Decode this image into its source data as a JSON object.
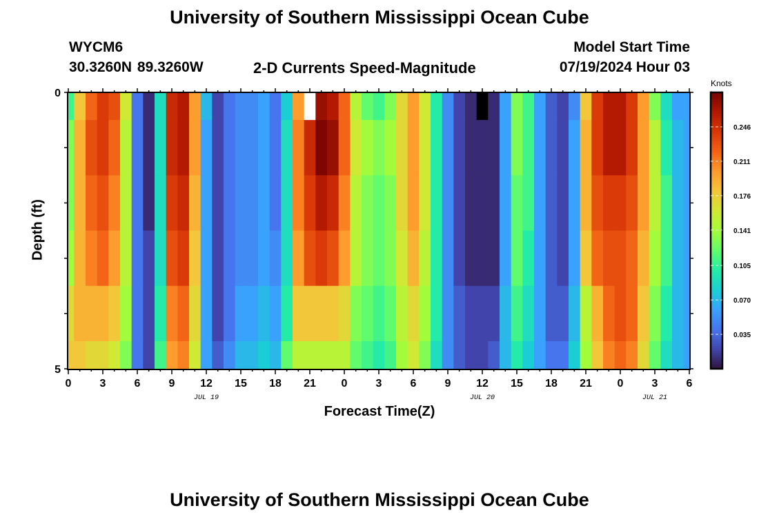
{
  "page": {
    "title": "University of Southern Mississippi Ocean Cube",
    "station_id": "WYCM6",
    "coordinates": "30.3260N  89.3260W",
    "subtitle": "2-D Currents Speed-Magnitude",
    "model_start_label": "Model Start Time",
    "model_start_value": "07/19/2024 Hour 03",
    "footer_title": "University of Southern Mississippi Ocean Cube"
  },
  "colors": {
    "colormap": [
      "#30123b",
      "#4145ab",
      "#4675ed",
      "#39a2fc",
      "#1bcfd4",
      "#24eca6",
      "#61fc6c",
      "#a4fc3b",
      "#d1e834",
      "#f3c63a",
      "#fe9b2d",
      "#f36315",
      "#d93806",
      "#b11901",
      "#7a0402"
    ],
    "missing_low": "#000000",
    "missing_high": "#ffffff"
  },
  "chart_data": {
    "type": "heatmap",
    "xlabel": "Forecast Time(Z)",
    "ylabel": "Depth (ft)",
    "x_tick_labels": [
      "0",
      "3",
      "6",
      "9",
      "12",
      "15",
      "18",
      "21",
      "0",
      "3",
      "6",
      "9",
      "12",
      "15",
      "18",
      "21",
      "0",
      "3",
      "6"
    ],
    "x_range_hours": [
      0,
      54
    ],
    "date_labels": [
      {
        "hour": 12,
        "label": "JUL 19"
      },
      {
        "hour": 36,
        "label": "JUL 20"
      },
      {
        "hour": 51,
        "label": "JUL 21"
      }
    ],
    "y_tick_labels": [
      "0",
      "5"
    ],
    "ylim": [
      0,
      5
    ],
    "colorbar": {
      "title": "Knots",
      "range": [
        0,
        0.281
      ],
      "tick_values": [
        0.035,
        0.07,
        0.105,
        0.141,
        0.176,
        0.211,
        0.246
      ],
      "tick_labels": [
        "0.035",
        "0.070",
        "0.105",
        "0.141",
        "0.176",
        "0.211",
        "0.246"
      ]
    },
    "depth_layer_edges_ft": [
      0,
      0.5,
      1.5,
      2.5,
      3.5,
      4.5,
      5
    ],
    "hours": [
      0,
      1,
      2,
      3,
      4,
      5,
      6,
      7,
      8,
      9,
      10,
      11,
      12,
      13,
      14,
      15,
      16,
      17,
      18,
      19,
      20,
      21,
      22,
      23,
      24,
      25,
      26,
      27,
      28,
      29,
      30,
      31,
      32,
      33,
      34,
      35,
      36,
      37,
      38,
      39,
      40,
      41,
      42,
      43,
      44,
      45,
      46,
      47,
      48,
      49,
      50,
      51,
      52,
      53,
      54
    ],
    "speed_knots": [
      [
        0.11,
        0.18,
        0.22,
        0.24,
        0.23,
        0.16,
        0.04,
        0.01,
        0.09,
        0.25,
        0.26,
        0.2,
        0.07,
        0.02,
        0.04,
        0.05,
        0.05,
        0.06,
        0.04,
        0.08,
        0.2,
        null,
        0.27,
        0.26,
        0.22,
        0.15,
        0.12,
        0.11,
        0.13,
        0.17,
        0.2,
        0.16,
        0.1,
        0.05,
        0.02,
        0.01,
        null,
        0.01,
        0.06,
        0.13,
        0.11,
        0.06,
        0.03,
        0.02,
        0.05,
        0.18,
        0.24,
        0.26,
        0.26,
        0.24,
        0.2,
        0.13,
        0.09,
        0.06,
        0.06
      ],
      [
        0.13,
        0.19,
        0.23,
        0.24,
        0.22,
        0.15,
        0.04,
        0.01,
        0.09,
        0.25,
        0.26,
        0.2,
        0.06,
        0.02,
        0.04,
        0.05,
        0.05,
        0.06,
        0.04,
        0.09,
        0.21,
        0.25,
        0.28,
        0.27,
        0.22,
        0.16,
        0.14,
        0.13,
        0.14,
        0.17,
        0.2,
        0.16,
        0.1,
        0.05,
        0.02,
        0.01,
        0.01,
        0.01,
        0.06,
        0.13,
        0.11,
        0.06,
        0.03,
        0.02,
        0.06,
        0.19,
        0.24,
        0.26,
        0.26,
        0.24,
        0.2,
        0.15,
        0.1,
        0.07,
        0.06
      ],
      [
        0.13,
        0.19,
        0.22,
        0.23,
        0.21,
        0.15,
        0.04,
        0.01,
        0.09,
        0.24,
        0.25,
        0.19,
        0.06,
        0.02,
        0.04,
        0.05,
        0.05,
        0.06,
        0.04,
        0.09,
        0.21,
        0.24,
        0.26,
        0.25,
        0.21,
        0.15,
        0.13,
        0.12,
        0.13,
        0.17,
        0.2,
        0.16,
        0.1,
        0.05,
        0.02,
        0.01,
        0.01,
        0.01,
        0.06,
        0.12,
        0.11,
        0.06,
        0.03,
        0.02,
        0.06,
        0.19,
        0.23,
        0.24,
        0.24,
        0.23,
        0.2,
        0.15,
        0.11,
        0.07,
        0.06
      ],
      [
        0.14,
        0.19,
        0.21,
        0.22,
        0.2,
        0.15,
        0.04,
        0.02,
        0.09,
        0.23,
        0.24,
        0.18,
        0.06,
        0.02,
        0.04,
        0.05,
        0.05,
        0.06,
        0.05,
        0.09,
        0.2,
        0.23,
        0.24,
        0.23,
        0.2,
        0.15,
        0.13,
        0.12,
        0.13,
        0.16,
        0.19,
        0.15,
        0.1,
        0.05,
        0.02,
        0.01,
        0.01,
        0.01,
        0.06,
        0.12,
        0.1,
        0.06,
        0.03,
        0.02,
        0.06,
        0.18,
        0.22,
        0.23,
        0.23,
        0.22,
        0.19,
        0.14,
        0.11,
        0.07,
        0.06
      ],
      [
        0.17,
        0.19,
        0.19,
        0.19,
        0.18,
        0.14,
        0.04,
        0.02,
        0.1,
        0.21,
        0.22,
        0.17,
        0.06,
        0.02,
        0.04,
        0.06,
        0.06,
        0.07,
        0.06,
        0.1,
        0.18,
        0.18,
        0.18,
        0.18,
        0.17,
        0.13,
        0.12,
        0.11,
        0.12,
        0.15,
        0.17,
        0.14,
        0.1,
        0.05,
        0.03,
        0.02,
        0.02,
        0.02,
        0.07,
        0.11,
        0.09,
        0.06,
        0.03,
        0.03,
        0.07,
        0.15,
        0.19,
        0.22,
        0.23,
        0.22,
        0.18,
        0.13,
        0.1,
        0.07,
        0.06
      ],
      [
        0.18,
        0.18,
        0.17,
        0.17,
        0.16,
        0.13,
        0.04,
        0.02,
        0.11,
        0.2,
        0.21,
        0.16,
        0.06,
        0.03,
        0.05,
        0.07,
        0.07,
        0.08,
        0.07,
        0.12,
        0.15,
        0.15,
        0.15,
        0.15,
        0.15,
        0.12,
        0.11,
        0.1,
        0.11,
        0.14,
        0.16,
        0.13,
        0.09,
        0.05,
        0.03,
        0.02,
        0.02,
        0.03,
        0.07,
        0.1,
        0.08,
        0.06,
        0.04,
        0.04,
        0.08,
        0.14,
        0.18,
        0.21,
        0.22,
        0.21,
        0.17,
        0.12,
        0.09,
        0.07,
        0.06
      ]
    ]
  }
}
